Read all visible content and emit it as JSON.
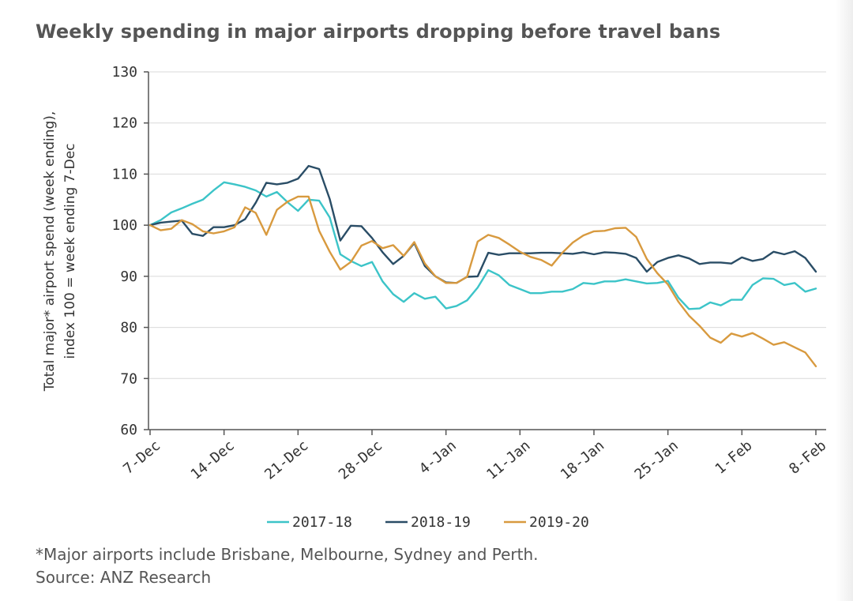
{
  "title": "Weekly spending in major airports dropping before travel bans",
  "footnote": "*Major airports include Brisbane, Melbourne, Sydney and Perth.",
  "source": "Source: ANZ Research",
  "chart_data": {
    "type": "line",
    "ylabel_line1": "Total major* airport spend (week ending),",
    "ylabel_line2": "index 100 = week ending 7-Dec",
    "ylim": [
      60,
      130
    ],
    "yticks": [
      60,
      70,
      80,
      90,
      100,
      110,
      120,
      130
    ],
    "xlim": [
      0,
      63
    ],
    "xticks": [
      {
        "day": 0,
        "label": "7-Dec"
      },
      {
        "day": 7,
        "label": "14-Dec"
      },
      {
        "day": 14,
        "label": "21-Dec"
      },
      {
        "day": 21,
        "label": "28-Dec"
      },
      {
        "day": 28,
        "label": "4-Jan"
      },
      {
        "day": 35,
        "label": "11-Jan"
      },
      {
        "day": 42,
        "label": "18-Jan"
      },
      {
        "day": 49,
        "label": "25-Jan"
      },
      {
        "day": 56,
        "label": "1-Feb"
      },
      {
        "day": 63,
        "label": "8-Feb"
      }
    ],
    "grid": true,
    "legend_position": "bottom",
    "series": [
      {
        "name": "2017-18",
        "color": "#3cc4c8",
        "points": [
          [
            0,
            100
          ],
          [
            1,
            101
          ],
          [
            2,
            102.5
          ],
          [
            3,
            103.3
          ],
          [
            4,
            104.2
          ],
          [
            5,
            105
          ],
          [
            6,
            106.8
          ],
          [
            7,
            108.4
          ],
          [
            8,
            108
          ],
          [
            9,
            107.5
          ],
          [
            10,
            106.8
          ],
          [
            11,
            105.6
          ],
          [
            12,
            106.5
          ],
          [
            13,
            104.5
          ],
          [
            14,
            102.8
          ],
          [
            15,
            105
          ],
          [
            16,
            104.8
          ],
          [
            17,
            101.5
          ],
          [
            18,
            94.3
          ],
          [
            19,
            93
          ],
          [
            20,
            92
          ],
          [
            21,
            92.8
          ],
          [
            22,
            89
          ],
          [
            23,
            86.5
          ],
          [
            24,
            85
          ],
          [
            25,
            86.7
          ],
          [
            26,
            85.6
          ],
          [
            27,
            86
          ],
          [
            28,
            83.7
          ],
          [
            29,
            84.2
          ],
          [
            30,
            85.3
          ],
          [
            31,
            87.8
          ],
          [
            32,
            91.2
          ],
          [
            33,
            90.2
          ],
          [
            34,
            88.3
          ],
          [
            35,
            87.5
          ],
          [
            36,
            86.7
          ],
          [
            37,
            86.7
          ],
          [
            38,
            87
          ],
          [
            39,
            87
          ],
          [
            40,
            87.5
          ],
          [
            41,
            88.7
          ],
          [
            42,
            88.5
          ],
          [
            43,
            89
          ],
          [
            44,
            89
          ],
          [
            45,
            89.4
          ],
          [
            46,
            89
          ],
          [
            47,
            88.6
          ],
          [
            48,
            88.7
          ],
          [
            49,
            89.1
          ],
          [
            50,
            85.8
          ],
          [
            51,
            83.6
          ],
          [
            52,
            83.7
          ],
          [
            53,
            84.9
          ],
          [
            54,
            84.3
          ],
          [
            55,
            85.4
          ],
          [
            56,
            85.4
          ],
          [
            57,
            88.3
          ],
          [
            58,
            89.6
          ],
          [
            59,
            89.5
          ],
          [
            60,
            88.3
          ],
          [
            61,
            88.7
          ],
          [
            62,
            87
          ],
          [
            63,
            87.6
          ]
        ]
      },
      {
        "name": "2018-19",
        "color": "#2a4d66",
        "points": [
          [
            0,
            100
          ],
          [
            1,
            100.5
          ],
          [
            2,
            100.7
          ],
          [
            3,
            100.9
          ],
          [
            4,
            98.3
          ],
          [
            5,
            97.9
          ],
          [
            6,
            99.6
          ],
          [
            7,
            99.6
          ],
          [
            8,
            100
          ],
          [
            9,
            101.2
          ],
          [
            10,
            104.4
          ],
          [
            11,
            108.3
          ],
          [
            12,
            108
          ],
          [
            13,
            108.3
          ],
          [
            14,
            109.1
          ],
          [
            15,
            111.6
          ],
          [
            16,
            111
          ],
          [
            17,
            105.1
          ],
          [
            18,
            97
          ],
          [
            19,
            99.9
          ],
          [
            20,
            99.8
          ],
          [
            21,
            97.5
          ],
          [
            22,
            94.7
          ],
          [
            23,
            92.4
          ],
          [
            24,
            94
          ],
          [
            25,
            96.5
          ],
          [
            26,
            92
          ],
          [
            27,
            90
          ],
          [
            28,
            88.8
          ],
          [
            29,
            88.7
          ],
          [
            30,
            89.9
          ],
          [
            31,
            90
          ],
          [
            32,
            94.6
          ],
          [
            33,
            94.2
          ],
          [
            34,
            94.5
          ],
          [
            35,
            94.5
          ],
          [
            36,
            94.5
          ],
          [
            37,
            94.6
          ],
          [
            38,
            94.6
          ],
          [
            39,
            94.5
          ],
          [
            40,
            94.4
          ],
          [
            41,
            94.7
          ],
          [
            42,
            94.3
          ],
          [
            43,
            94.7
          ],
          [
            44,
            94.6
          ],
          [
            45,
            94.4
          ],
          [
            46,
            93.6
          ],
          [
            47,
            90.9
          ],
          [
            48,
            92.8
          ],
          [
            49,
            93.6
          ],
          [
            50,
            94.1
          ],
          [
            51,
            93.5
          ],
          [
            52,
            92.4
          ],
          [
            53,
            92.7
          ],
          [
            54,
            92.7
          ],
          [
            55,
            92.5
          ],
          [
            56,
            93.7
          ],
          [
            57,
            93
          ],
          [
            58,
            93.4
          ],
          [
            59,
            94.8
          ],
          [
            60,
            94.3
          ],
          [
            61,
            94.9
          ],
          [
            62,
            93.6
          ],
          [
            63,
            90.9
          ]
        ]
      },
      {
        "name": "2019-20",
        "color": "#d89a3f",
        "points": [
          [
            0,
            100
          ],
          [
            1,
            99
          ],
          [
            2,
            99.3
          ],
          [
            3,
            101
          ],
          [
            4,
            100.2
          ],
          [
            5,
            98.8
          ],
          [
            6,
            98.4
          ],
          [
            7,
            98.8
          ],
          [
            8,
            99.6
          ],
          [
            9,
            103.5
          ],
          [
            10,
            102.4
          ],
          [
            11,
            98.1
          ],
          [
            12,
            103
          ],
          [
            13,
            104.6
          ],
          [
            14,
            105.6
          ],
          [
            15,
            105.6
          ],
          [
            16,
            98.9
          ],
          [
            17,
            94.8
          ],
          [
            18,
            91.3
          ],
          [
            19,
            92.8
          ],
          [
            20,
            96
          ],
          [
            21,
            96.9
          ],
          [
            22,
            95.5
          ],
          [
            23,
            96.1
          ],
          [
            24,
            94
          ],
          [
            25,
            96.7
          ],
          [
            26,
            92.5
          ],
          [
            27,
            90
          ],
          [
            28,
            88.7
          ],
          [
            29,
            88.7
          ],
          [
            30,
            89.9
          ],
          [
            31,
            96.8
          ],
          [
            32,
            98.1
          ],
          [
            33,
            97.5
          ],
          [
            34,
            96.2
          ],
          [
            35,
            94.8
          ],
          [
            36,
            93.8
          ],
          [
            37,
            93.2
          ],
          [
            38,
            92.1
          ],
          [
            39,
            94.6
          ],
          [
            40,
            96.6
          ],
          [
            41,
            98
          ],
          [
            42,
            98.8
          ],
          [
            43,
            98.9
          ],
          [
            44,
            99.4
          ],
          [
            45,
            99.5
          ],
          [
            46,
            97.7
          ],
          [
            47,
            93.4
          ],
          [
            48,
            90.6
          ],
          [
            49,
            88.4
          ],
          [
            50,
            85
          ],
          [
            51,
            82.3
          ],
          [
            52,
            80.3
          ],
          [
            53,
            78
          ],
          [
            54,
            77
          ],
          [
            55,
            78.8
          ],
          [
            56,
            78.2
          ],
          [
            57,
            78.9
          ],
          [
            58,
            77.8
          ],
          [
            59,
            76.6
          ],
          [
            60,
            77.1
          ],
          [
            61,
            76.1
          ],
          [
            62,
            75.1
          ],
          [
            63,
            72.4
          ]
        ]
      }
    ]
  }
}
